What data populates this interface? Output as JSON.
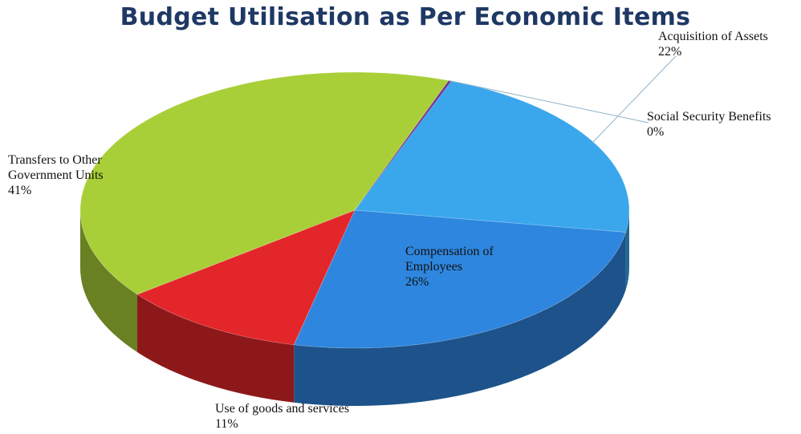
{
  "chart_data": {
    "type": "pie",
    "title": "Budget Utilisation as Per Economic Items",
    "slices": [
      {
        "label": "Acquisition of Assets",
        "value": 22,
        "value_label": "22%",
        "color": "#3AA7EC"
      },
      {
        "label": "Compensation of Employees",
        "value": 26,
        "value_label": "26%",
        "color": "#2E86DE"
      },
      {
        "label": "Use of goods and services",
        "value": 11,
        "value_label": "11%",
        "color": "#E3262A"
      },
      {
        "label": "Transfers to Other Government Units",
        "value": 41,
        "value_label": "41%",
        "color": "#A9CF38"
      },
      {
        "label": "Social Security Benefits",
        "value": 0,
        "value_label": "0%",
        "color": "#7A2E8E"
      }
    ],
    "legend": "none",
    "style": "3d-pie"
  }
}
